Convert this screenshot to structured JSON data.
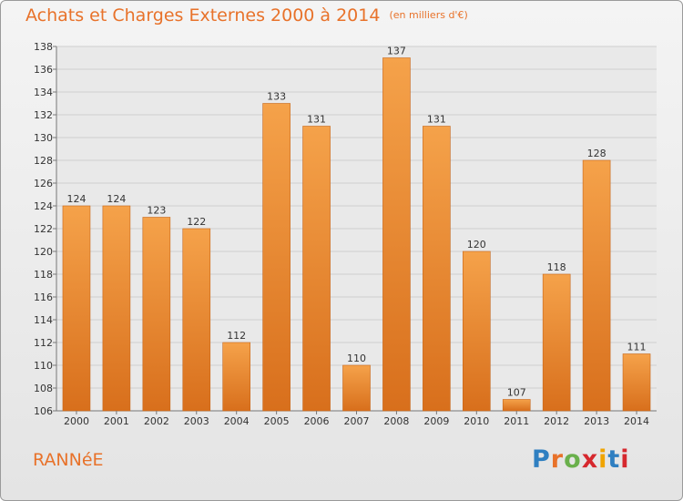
{
  "title": "Achats et Charges Externes 2000 à 2014",
  "subtitle": "(en milliers d'€)",
  "commune": "RANNéE",
  "logo": {
    "text": "Proxiti",
    "letter_colors": [
      "#2f7fc1",
      "#e8722a",
      "#6ab04c",
      "#d6282e",
      "#f0a400",
      "#2f7fc1",
      "#d6282e"
    ]
  },
  "colors": {
    "bar_top": "#f5a24a",
    "bar_bottom": "#d86f1c",
    "accent": "#e8722a"
  },
  "chart_data": {
    "type": "bar",
    "categories": [
      "2000",
      "2001",
      "2002",
      "2003",
      "2004",
      "2005",
      "2006",
      "2007",
      "2008",
      "2009",
      "2010",
      "2011",
      "2012",
      "2013",
      "2014"
    ],
    "values": [
      124,
      124,
      123,
      122,
      112,
      133,
      131,
      110,
      137,
      131,
      120,
      107,
      118,
      128,
      111
    ],
    "ylim": [
      106,
      138
    ],
    "yticks": [
      106,
      108,
      110,
      112,
      114,
      116,
      118,
      120,
      122,
      124,
      126,
      128,
      130,
      132,
      134,
      136,
      138
    ],
    "grid": true,
    "xlabel": "",
    "ylabel": ""
  }
}
